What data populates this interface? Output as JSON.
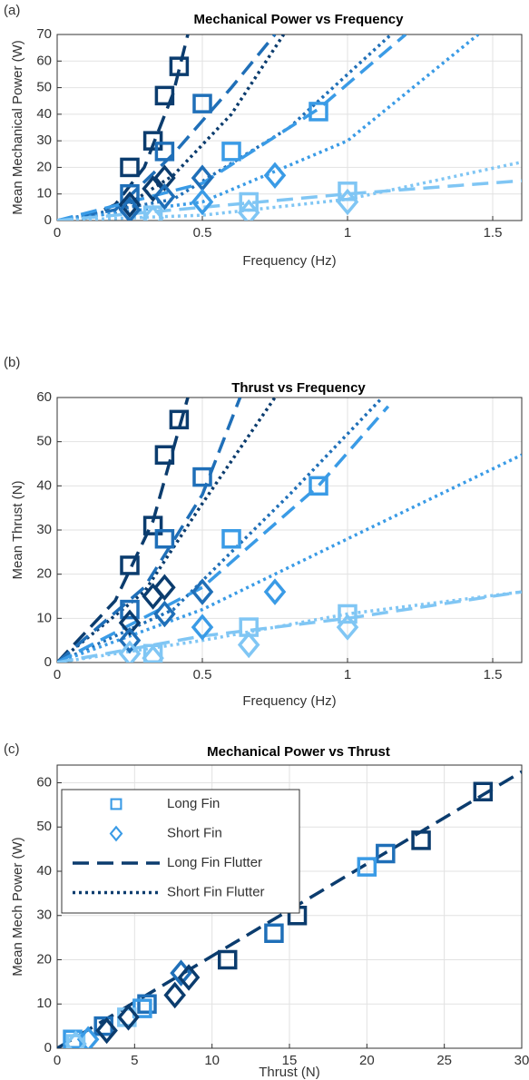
{
  "chart_data": [
    {
      "type": "scatter",
      "panel": "(a)",
      "title": "Mechanical Power vs Frequency",
      "xlabel": "Frequency (Hz)",
      "ylabel": "Mean Mechanical Power (W)",
      "xlim": [
        0,
        1.6
      ],
      "xticks": [
        0,
        0.5,
        1,
        1.5
      ],
      "ylim": [
        0,
        70
      ],
      "yticks": [
        0,
        10,
        20,
        30,
        40,
        50,
        60,
        70
      ],
      "grid": true,
      "series": [
        {
          "line": "dashed",
          "color": "#0b3c6e",
          "x": [
            0,
            0.1,
            0.2,
            0.3,
            0.4,
            0.45
          ],
          "values": [
            0,
            1,
            6,
            20,
            48,
            70
          ]
        },
        {
          "line": "dotted",
          "color": "#0b3c6e",
          "x": [
            0,
            0.2,
            0.4,
            0.6,
            0.78
          ],
          "values": [
            0,
            3,
            17,
            40,
            70
          ]
        },
        {
          "line": "dashed",
          "color": "#1f6fb8",
          "x": [
            0,
            0.2,
            0.4,
            0.6,
            0.75
          ],
          "values": [
            0,
            4,
            25,
            50,
            70
          ]
        },
        {
          "line": "dotted",
          "color": "#1f6fb8",
          "x": [
            0,
            0.4,
            0.8,
            1.15
          ],
          "values": [
            0,
            8,
            35,
            70
          ]
        },
        {
          "line": "dashed",
          "color": "#3a9be6",
          "x": [
            0,
            0.5,
            0.9,
            1.2
          ],
          "values": [
            0,
            14,
            42,
            70
          ]
        },
        {
          "line": "dotted",
          "color": "#3a9be6",
          "x": [
            0,
            0.5,
            1,
            1.45
          ],
          "values": [
            0,
            7,
            30,
            70
          ]
        },
        {
          "line": "dashed",
          "color": "#80c6f4",
          "x": [
            0,
            0.5,
            1,
            1.6
          ],
          "values": [
            0,
            5,
            10,
            15
          ]
        },
        {
          "line": "dotted",
          "color": "#80c6f4",
          "x": [
            0,
            0.5,
            1,
            1.6
          ],
          "values": [
            0,
            2,
            8,
            22
          ]
        },
        {
          "marker": "square",
          "color": "#0b3c6e",
          "x": [
            0.25,
            0.33,
            0.37,
            0.42
          ],
          "values": [
            20,
            30,
            47,
            58
          ]
        },
        {
          "marker": "square",
          "color": "#1f6fb8",
          "x": [
            0.25,
            0.37,
            0.5
          ],
          "values": [
            10,
            26,
            44
          ]
        },
        {
          "marker": "square",
          "color": "#3a9be6",
          "x": [
            0.6,
            0.9
          ],
          "values": [
            26,
            41
          ]
        },
        {
          "marker": "square",
          "color": "#80c6f4",
          "x": [
            0.33,
            0.66,
            1
          ],
          "values": [
            2,
            7,
            11
          ]
        },
        {
          "marker": "diamond",
          "color": "#0b3c6e",
          "x": [
            0.25,
            0.33,
            0.37
          ],
          "values": [
            6,
            12,
            16
          ]
        },
        {
          "marker": "diamond",
          "color": "#1f6fb8",
          "x": [
            0.25,
            0.37,
            0.5
          ],
          "values": [
            4,
            9,
            16
          ]
        },
        {
          "marker": "diamond",
          "color": "#3a9be6",
          "x": [
            0.5,
            0.75
          ],
          "values": [
            7,
            17
          ]
        },
        {
          "marker": "diamond",
          "color": "#80c6f4",
          "x": [
            0.33,
            0.66,
            1
          ],
          "values": [
            1,
            3,
            7
          ]
        }
      ]
    },
    {
      "type": "scatter",
      "panel": "(b)",
      "title": "Thrust vs Frequency",
      "xlabel": "Frequency (Hz)",
      "ylabel": "Mean Thrust (N)",
      "xlim": [
        0,
        1.6
      ],
      "xticks": [
        0,
        0.5,
        1,
        1.5
      ],
      "ylim": [
        0,
        60
      ],
      "yticks": [
        0,
        10,
        20,
        30,
        40,
        50,
        60
      ],
      "grid": true,
      "series": [
        {
          "line": "dashed",
          "color": "#0b3c6e",
          "x": [
            0,
            0.2,
            0.33,
            0.45
          ],
          "values": [
            0,
            14,
            32,
            60
          ]
        },
        {
          "line": "dotted",
          "color": "#0b3c6e",
          "x": [
            0,
            0.3,
            0.5,
            0.75
          ],
          "values": [
            0,
            16,
            36,
            60
          ]
        },
        {
          "line": "dashed",
          "color": "#1f6fb8",
          "x": [
            0,
            0.3,
            0.5,
            0.63
          ],
          "values": [
            0,
            17,
            38,
            60
          ]
        },
        {
          "line": "dotted",
          "color": "#1f6fb8",
          "x": [
            0,
            0.4,
            0.8,
            1.12
          ],
          "values": [
            0,
            12,
            38,
            60
          ]
        },
        {
          "line": "dashed",
          "color": "#3a9be6",
          "x": [
            0,
            0.5,
            0.9,
            1.14
          ],
          "values": [
            0,
            17,
            40,
            58
          ]
        },
        {
          "line": "dotted",
          "color": "#3a9be6",
          "x": [
            0,
            0.5,
            1,
            1.6
          ],
          "values": [
            0,
            12,
            28,
            47
          ]
        },
        {
          "line": "dashed",
          "color": "#80c6f4",
          "x": [
            0,
            0.5,
            1,
            1.6
          ],
          "values": [
            0,
            6,
            10,
            16
          ]
        },
        {
          "line": "dotted",
          "color": "#80c6f4",
          "x": [
            0,
            0.5,
            1,
            1.6
          ],
          "values": [
            0,
            5,
            11,
            16
          ]
        },
        {
          "marker": "square",
          "color": "#0b3c6e",
          "x": [
            0.25,
            0.33,
            0.37,
            0.42
          ],
          "values": [
            22,
            31,
            47,
            55
          ]
        },
        {
          "marker": "square",
          "color": "#1f6fb8",
          "x": [
            0.25,
            0.37,
            0.5
          ],
          "values": [
            12,
            28,
            42
          ]
        },
        {
          "marker": "square",
          "color": "#3a9be6",
          "x": [
            0.6,
            0.9
          ],
          "values": [
            28,
            40
          ]
        },
        {
          "marker": "square",
          "color": "#80c6f4",
          "x": [
            0.33,
            0.66,
            1
          ],
          "values": [
            2,
            8,
            11
          ]
        },
        {
          "marker": "diamond",
          "color": "#0b3c6e",
          "x": [
            0.25,
            0.33,
            0.37
          ],
          "values": [
            9,
            15,
            17
          ]
        },
        {
          "marker": "diamond",
          "color": "#1f6fb8",
          "x": [
            0.25,
            0.37,
            0.5
          ],
          "values": [
            5,
            11,
            16
          ]
        },
        {
          "marker": "diamond",
          "color": "#3a9be6",
          "x": [
            0.5,
            0.75
          ],
          "values": [
            8,
            16
          ]
        },
        {
          "marker": "diamond",
          "color": "#80c6f4",
          "x": [
            0.25,
            0.33,
            0.66,
            1
          ],
          "values": [
            2,
            1,
            4,
            8
          ]
        }
      ]
    },
    {
      "type": "scatter",
      "panel": "(c)",
      "title": "Mechanical Power vs Thrust",
      "xlabel": "Thrust (N)",
      "ylabel": "Mean Mech Power (W)",
      "xlim": [
        0,
        30
      ],
      "xticks": [
        0,
        5,
        10,
        15,
        20,
        25,
        30
      ],
      "ylim": [
        0,
        64
      ],
      "yticks": [
        0,
        10,
        20,
        30,
        40,
        50,
        60
      ],
      "grid": true,
      "legend": "upper left",
      "series": [
        {
          "name": "Long Fin",
          "marker": "square",
          "color": "#3a9be6",
          "x": [
            27.5,
            23.5,
            21.2,
            20,
            15.5,
            14,
            11,
            5.8,
            5.5,
            4.5,
            3,
            1,
            1.2
          ],
          "values": [
            58,
            47,
            44,
            41,
            30,
            26,
            20,
            10,
            9,
            7,
            5,
            2,
            1
          ],
          "point_colors": [
            "#0b3c6e",
            "#0b3c6e",
            "#1f6fb8",
            "#3a9be6",
            "#0b3c6e",
            "#1f6fb8",
            "#0b3c6e",
            "#1f6fb8",
            "#3a9be6",
            "#80c6f4",
            "#1f6fb8",
            "#3a9be6",
            "#80c6f4"
          ]
        },
        {
          "name": "Short Fin",
          "marker": "diamond",
          "color": "#3a9be6",
          "x": [
            8,
            8.5,
            7.6,
            4.6,
            3.2,
            2,
            1.2
          ],
          "values": [
            17,
            16,
            12,
            7,
            4,
            2,
            1
          ],
          "point_colors": [
            "#1f6fb8",
            "#0b3c6e",
            "#0b3c6e",
            "#0b3c6e",
            "#0b3c6e",
            "#3a9be6",
            "#80c6f4"
          ]
        },
        {
          "name": "Long Fin Flutter",
          "line": "dashed",
          "color": "#0b3c6e",
          "x": [
            0,
            30
          ],
          "values": [
            0,
            62.5
          ]
        },
        {
          "name": "Short Fin Flutter",
          "line": "dotted",
          "color": "#0b3c6e",
          "x": [],
          "values": []
        }
      ]
    }
  ]
}
